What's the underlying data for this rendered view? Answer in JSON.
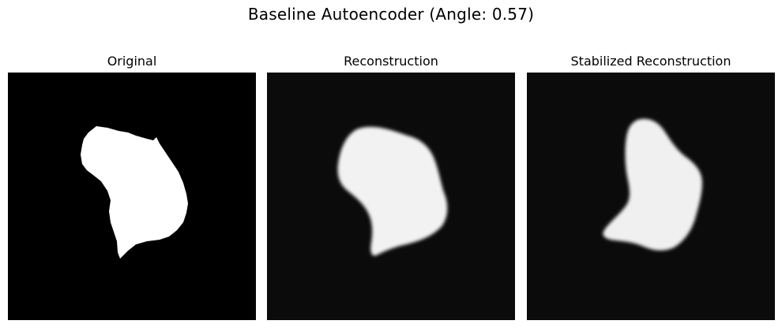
{
  "figure": {
    "title": "Baseline Autoencoder (Angle: 0.57)"
  },
  "panels": [
    {
      "title": "Original",
      "background": "#000000",
      "fill": "#ffffff",
      "blur": 0
    },
    {
      "title": "Reconstruction",
      "background": "#0b0b0b",
      "fill": "#f2f2f2",
      "blur": 2.2
    },
    {
      "title": "Stabilized Reconstruction",
      "background": "#0b0b0b",
      "fill": "#f0f0f0",
      "blur": 2.2
    }
  ]
}
